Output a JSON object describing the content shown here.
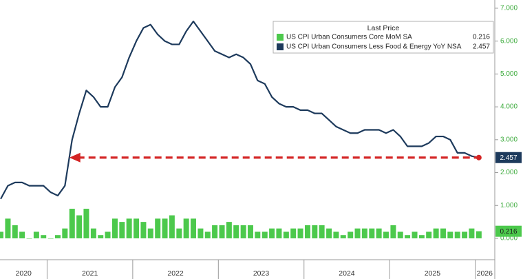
{
  "chart_data": {
    "type": "combo",
    "legend_title": "Last Price",
    "legend": "upper right",
    "grid": false,
    "x": [
      2020.458,
      2020.542,
      2020.625,
      2020.708,
      2020.792,
      2020.875,
      2020.958,
      2021.042,
      2021.125,
      2021.208,
      2021.292,
      2021.375,
      2021.458,
      2021.542,
      2021.625,
      2021.708,
      2021.792,
      2021.875,
      2021.958,
      2022.042,
      2022.125,
      2022.208,
      2022.292,
      2022.375,
      2022.458,
      2022.542,
      2022.625,
      2022.708,
      2022.792,
      2022.875,
      2022.958,
      2023.042,
      2023.125,
      2023.208,
      2023.292,
      2023.375,
      2023.458,
      2023.542,
      2023.625,
      2023.708,
      2023.792,
      2023.875,
      2023.958,
      2024.042,
      2024.125,
      2024.208,
      2024.292,
      2024.375,
      2024.458,
      2024.542,
      2024.625,
      2024.708,
      2024.792,
      2024.875,
      2024.958,
      2025.042,
      2025.125,
      2025.208,
      2025.292,
      2025.375,
      2025.458,
      2025.542,
      2025.625,
      2025.708,
      2025.792,
      2025.875,
      2025.958,
      2026.042
    ],
    "series": [
      {
        "name": "US CPI Urban Consumers Core MoM SA",
        "type": "bar",
        "color": "#4cc94c",
        "values": [
          0.2,
          0.6,
          0.4,
          0.2,
          0.0,
          0.2,
          0.1,
          0.0,
          0.1,
          0.3,
          0.9,
          0.7,
          0.9,
          0.3,
          0.1,
          0.2,
          0.6,
          0.5,
          0.6,
          0.6,
          0.5,
          0.3,
          0.6,
          0.6,
          0.7,
          0.3,
          0.6,
          0.6,
          0.3,
          0.2,
          0.4,
          0.4,
          0.5,
          0.4,
          0.4,
          0.4,
          0.2,
          0.2,
          0.3,
          0.3,
          0.2,
          0.3,
          0.3,
          0.4,
          0.4,
          0.4,
          0.3,
          0.2,
          0.1,
          0.2,
          0.3,
          0.3,
          0.3,
          0.3,
          0.2,
          0.4,
          0.2,
          0.1,
          0.2,
          0.1,
          0.2,
          0.3,
          0.3,
          0.2,
          0.2,
          0.2,
          0.3,
          0.216
        ]
      },
      {
        "name": "US CPI Urban Consumers Less Food & Energy YoY NSA",
        "type": "line",
        "color": "#1d3a5c",
        "values": [
          1.2,
          1.6,
          1.7,
          1.7,
          1.6,
          1.6,
          1.6,
          1.4,
          1.3,
          1.6,
          3.0,
          3.8,
          4.5,
          4.3,
          4.0,
          4.0,
          4.6,
          4.9,
          5.5,
          6.0,
          6.4,
          6.5,
          6.2,
          6.0,
          5.9,
          5.9,
          6.3,
          6.6,
          6.3,
          6.0,
          5.7,
          5.6,
          5.5,
          5.6,
          5.5,
          5.3,
          4.8,
          4.7,
          4.3,
          4.1,
          4.0,
          4.0,
          3.9,
          3.9,
          3.8,
          3.8,
          3.6,
          3.4,
          3.3,
          3.2,
          3.2,
          3.3,
          3.3,
          3.3,
          3.2,
          3.3,
          3.1,
          2.8,
          2.8,
          2.8,
          2.9,
          3.1,
          3.1,
          3.0,
          2.6,
          2.6,
          2.5,
          2.457
        ]
      }
    ],
    "xlim": [
      2020.45,
      2026.22
    ],
    "xticks": [
      2021,
      2022,
      2023,
      2024,
      2025,
      2026
    ],
    "x_labels": [
      "2020",
      "2021",
      "2022",
      "2023",
      "2024",
      "2025",
      "2026"
    ],
    "ylim": [
      -0.65,
      7.25
    ],
    "yticks": [
      {
        "value": 0,
        "label": "0.000"
      },
      {
        "value": 1,
        "label": "1.000"
      },
      {
        "value": 2,
        "label": "2.000"
      },
      {
        "value": 3,
        "label": "3.000"
      },
      {
        "value": 4,
        "label": "4.000"
      },
      {
        "value": 5,
        "label": "5.000"
      },
      {
        "value": 6,
        "label": "6.000"
      },
      {
        "value": 7,
        "label": "7.000"
      }
    ]
  }
}
